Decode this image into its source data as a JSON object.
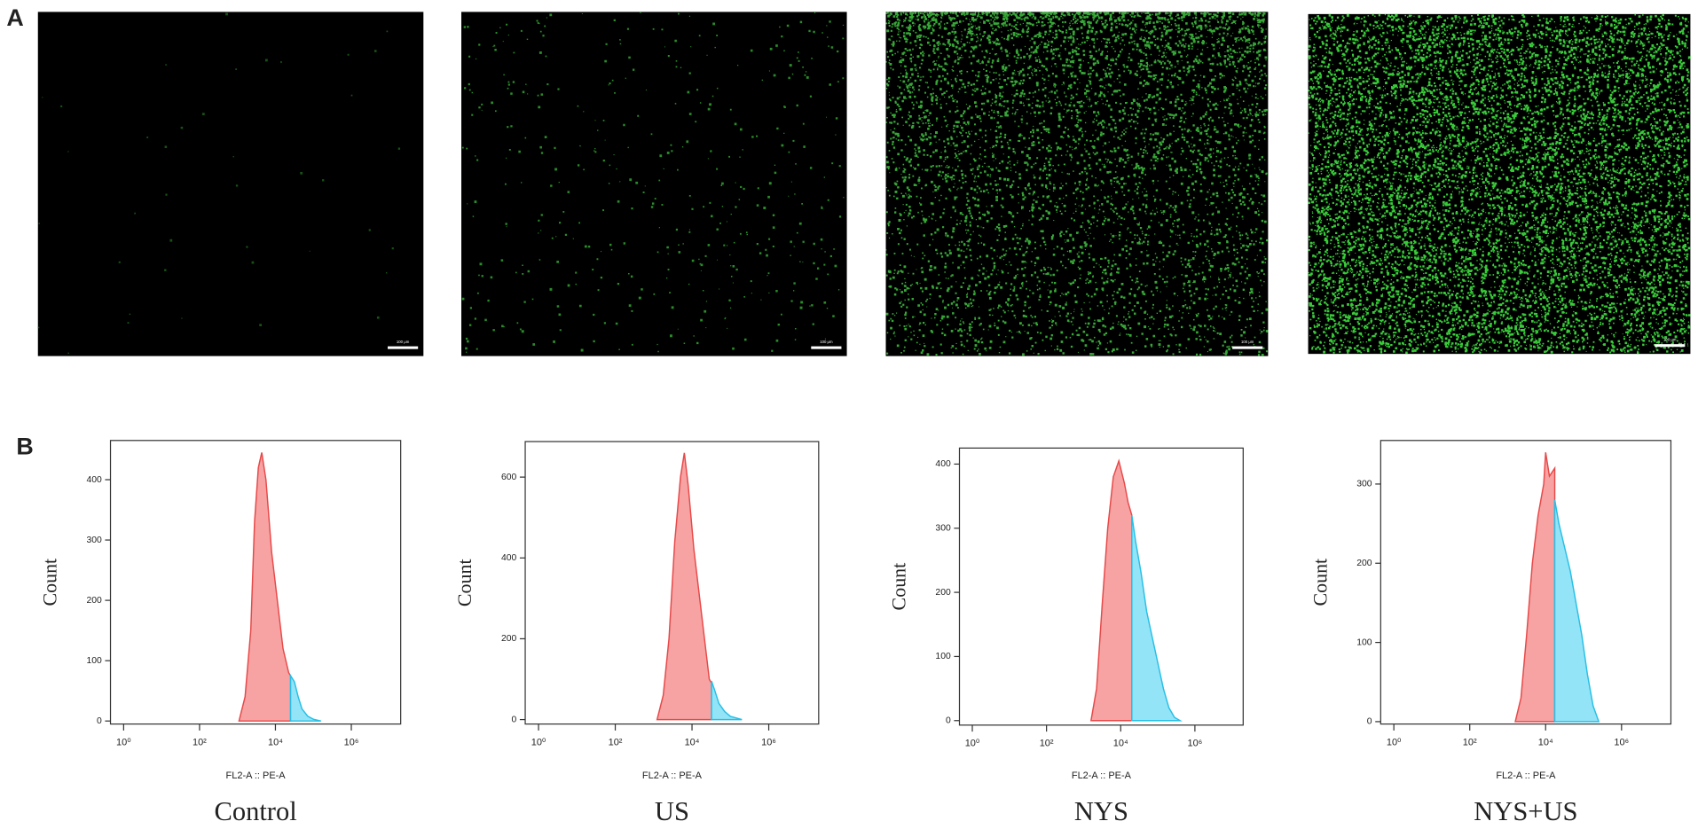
{
  "panel_labels": [
    "A",
    "B"
  ],
  "scale_bar_label": "100 μm",
  "chart_data": [
    {
      "type": "area",
      "caption": "Control",
      "ylabel": "Count",
      "xlabel": "FL2-A :: PE-A",
      "log_x": true,
      "xlim": [
        0.45,
        20000000
      ],
      "xticks": [
        {
          "value": 1,
          "label": "10⁰"
        },
        {
          "value": 100,
          "label": "10²"
        },
        {
          "value": 10000,
          "label": "10⁴"
        },
        {
          "value": 1000000,
          "label": "10⁶"
        }
      ],
      "ylim": [
        -5,
        465
      ],
      "yticks": [
        0,
        100,
        200,
        300,
        400
      ],
      "series": [
        {
          "color": "#e84848",
          "fill": "#f7a3a3",
          "x": [
            1096,
            1585,
            2239,
            2818,
            3548,
            4365,
            5623,
            7943,
            11220,
            15850,
            22390,
            25120
          ],
          "values": [
            0,
            40,
            150,
            330,
            420,
            445,
            400,
            280,
            200,
            120,
            80,
            75
          ]
        },
        {
          "color": "#27bfe6",
          "fill": "#93e4f7",
          "x": [
            25120,
            31620,
            39810,
            50120,
            70790,
            100000,
            158500
          ],
          "values": [
            75,
            65,
            40,
            20,
            8,
            3,
            0
          ]
        }
      ]
    },
    {
      "type": "area",
      "caption": "US",
      "ylabel": "Count",
      "xlabel": "FL2-A :: PE-A",
      "log_x": true,
      "xlim": [
        0.45,
        20000000
      ],
      "xticks": [
        {
          "value": 1,
          "label": "10⁰"
        },
        {
          "value": 100,
          "label": "10²"
        },
        {
          "value": 10000,
          "label": "10⁴"
        },
        {
          "value": 1000000,
          "label": "10⁶"
        }
      ],
      "ylim": [
        -11,
        688
      ],
      "yticks": [
        0,
        200,
        400,
        600
      ],
      "series": [
        {
          "color": "#e84848",
          "fill": "#f7a3a3",
          "x": [
            1230,
            1778,
            2512,
            3548,
            5012,
            6310,
            7943,
            11220,
            15850,
            22390,
            28180,
            32360
          ],
          "values": [
            0,
            60,
            200,
            440,
            600,
            660,
            580,
            420,
            300,
            180,
            100,
            90
          ]
        },
        {
          "color": "#27bfe6",
          "fill": "#93e4f7",
          "x": [
            32360,
            39810,
            50120,
            70790,
            100000,
            199500
          ],
          "values": [
            95,
            70,
            40,
            20,
            8,
            0
          ]
        }
      ]
    },
    {
      "type": "area",
      "caption": "NYS",
      "ylabel": "Count",
      "xlabel": "FL2-A :: PE-A",
      "log_x": true,
      "xlim": [
        0.45,
        20000000
      ],
      "xticks": [
        {
          "value": 1,
          "label": "10⁰"
        },
        {
          "value": 100,
          "label": "10²"
        },
        {
          "value": 10000,
          "label": "10⁴"
        },
        {
          "value": 1000000,
          "label": "10⁶"
        }
      ],
      "ylim": [
        -7,
        425
      ],
      "yticks": [
        0,
        100,
        200,
        300,
        400
      ],
      "series": [
        {
          "color": "#e84848",
          "fill": "#f7a3a3",
          "x": [
            1585,
            2239,
            3162,
            4467,
            6310,
            8913,
            12590,
            15850,
            19950
          ],
          "values": [
            0,
            50,
            180,
            300,
            380,
            405,
            370,
            340,
            320
          ]
        },
        {
          "color": "#27bfe6",
          "fill": "#93e4f7",
          "x": [
            19950,
            25120,
            35480,
            50120,
            70790,
            100000,
            141300,
            199500,
            281800,
            398100
          ],
          "values": [
            320,
            280,
            230,
            170,
            130,
            90,
            50,
            20,
            5,
            0
          ]
        }
      ]
    },
    {
      "type": "area",
      "caption": "NYS+US",
      "ylabel": "Count",
      "xlabel": "FL2-A :: PE-A",
      "log_x": true,
      "xlim": [
        0.45,
        20000000
      ],
      "xticks": [
        {
          "value": 1,
          "label": "10⁰"
        },
        {
          "value": 100,
          "label": "10²"
        },
        {
          "value": 10000,
          "label": "10⁴"
        },
        {
          "value": 1000000,
          "label": "10⁶"
        }
      ],
      "ylim": [
        -3,
        355
      ],
      "yticks": [
        0,
        100,
        200,
        300
      ],
      "series": [
        {
          "color": "#e84848",
          "fill": "#f7a3a3",
          "x": [
            1585,
            2239,
            3162,
            4467,
            6310,
            8913,
            10000,
            12590,
            17380
          ],
          "values": [
            0,
            30,
            110,
            200,
            260,
            300,
            340,
            310,
            320
          ]
        },
        {
          "color": "#27bfe6",
          "fill": "#93e4f7",
          "x": [
            17380,
            22390,
            31620,
            44670,
            63100,
            89130,
            125900,
            177800,
            251200
          ],
          "values": [
            280,
            250,
            220,
            190,
            150,
            110,
            60,
            20,
            0
          ]
        }
      ]
    }
  ]
}
